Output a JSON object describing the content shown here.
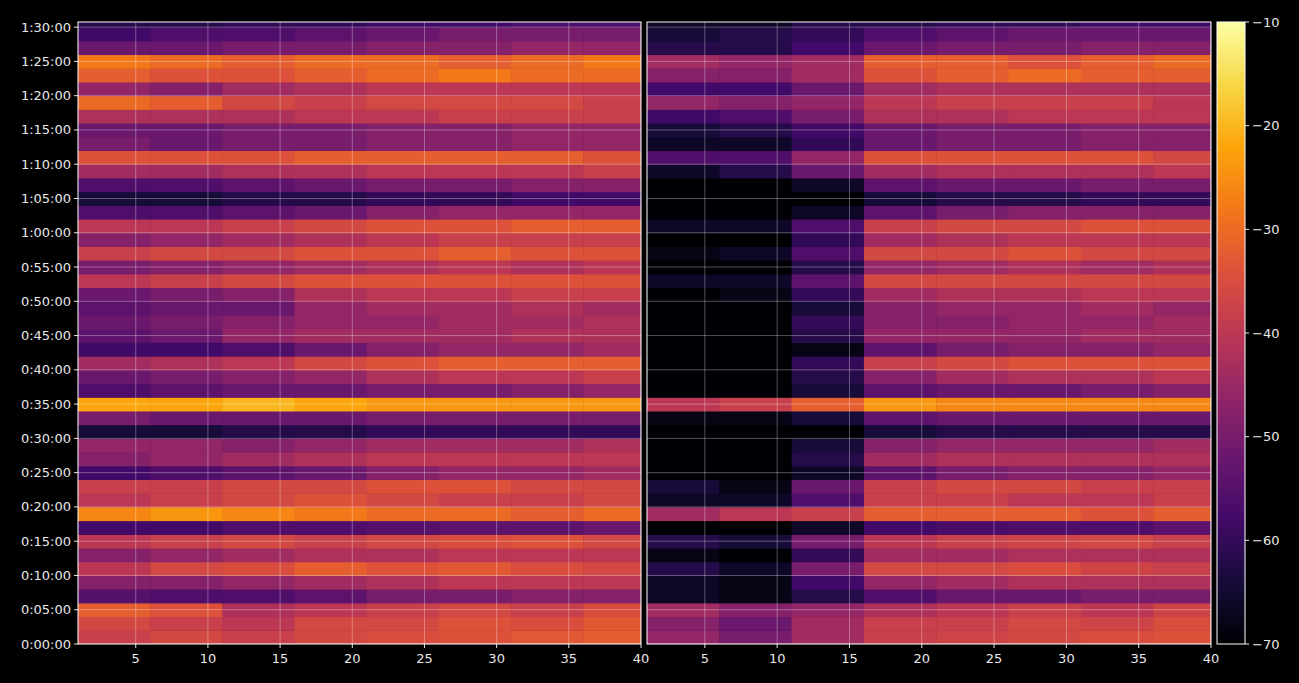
{
  "chart_data": [
    {
      "type": "heatmap",
      "x_bins": [
        1,
        6,
        11,
        16,
        21,
        26,
        31,
        36,
        40
      ],
      "y_bins": [
        0,
        120,
        240,
        360,
        480,
        600,
        720,
        840,
        960,
        1080,
        1200,
        1320,
        1440,
        1560,
        1680,
        1800,
        1920,
        2040,
        2160,
        2280,
        2400,
        2520,
        2640,
        2760,
        2880,
        3000,
        3120,
        3240,
        3360,
        3480,
        3600,
        3720,
        3840,
        3960,
        4080,
        4200,
        4320,
        4440,
        4560,
        4680,
        4800,
        4920,
        5040,
        5160,
        5280,
        5400,
        5520
      ],
      "z": [
        [
          -38,
          -36,
          -38,
          -36,
          -35,
          -34,
          -33,
          -32
        ],
        [
          -36,
          -38,
          -40,
          -36,
          -36,
          -34,
          -35,
          -33
        ],
        [
          -32,
          -34,
          -42,
          -40,
          -38,
          -36,
          -38,
          -35
        ],
        [
          -55,
          -56,
          -56,
          -54,
          -50,
          -50,
          -48,
          -48
        ],
        [
          -48,
          -48,
          -46,
          -44,
          -42,
          -40,
          -40,
          -40
        ],
        [
          -40,
          -36,
          -35,
          -32,
          -34,
          -33,
          -35,
          -36
        ],
        [
          -48,
          -46,
          -44,
          -42,
          -42,
          -40,
          -40,
          -40
        ],
        [
          -40,
          -38,
          -36,
          -38,
          -36,
          -35,
          -34,
          -36
        ],
        [
          -58,
          -58,
          -56,
          -56,
          -55,
          -54,
          -54,
          -52
        ],
        [
          -26,
          -24,
          -26,
          -28,
          -30,
          -30,
          -32,
          -30
        ],
        [
          -40,
          -38,
          -36,
          -34,
          -36,
          -38,
          -38,
          -36
        ],
        [
          -38,
          -38,
          -36,
          -36,
          -34,
          -34,
          -36,
          -36
        ],
        [
          -58,
          -56,
          -54,
          -52,
          -48,
          -46,
          -46,
          -44
        ],
        [
          -48,
          -46,
          -44,
          -42,
          -40,
          -40,
          -40,
          -40
        ],
        [
          -46,
          -46,
          -48,
          -46,
          -44,
          -44,
          -44,
          -42
        ],
        [
          -64,
          -64,
          -62,
          -62,
          -60,
          -60,
          -60,
          -60
        ],
        [
          -50,
          -52,
          -52,
          -52,
          -50,
          -50,
          -50,
          -50
        ],
        [
          -22,
          -22,
          -20,
          -22,
          -24,
          -24,
          -24,
          -24
        ],
        [
          -56,
          -54,
          -52,
          -52,
          -50,
          -50,
          -48,
          -46
        ],
        [
          -52,
          -50,
          -48,
          -46,
          -42,
          -40,
          -40,
          -38
        ],
        [
          -44,
          -42,
          -40,
          -36,
          -34,
          -32,
          -32,
          -32
        ],
        [
          -58,
          -58,
          -56,
          -52,
          -48,
          -46,
          -46,
          -44
        ],
        [
          -54,
          -52,
          -46,
          -44,
          -44,
          -44,
          -42,
          -42
        ],
        [
          -52,
          -50,
          -48,
          -46,
          -46,
          -44,
          -44,
          -42
        ],
        [
          -54,
          -52,
          -52,
          -46,
          -44,
          -44,
          -42,
          -44
        ],
        [
          -52,
          -50,
          -48,
          -42,
          -40,
          -40,
          -38,
          -38
        ],
        [
          -40,
          -38,
          -36,
          -34,
          -34,
          -34,
          -34,
          -34
        ],
        [
          -50,
          -48,
          -46,
          -44,
          -42,
          -40,
          -42,
          -40
        ],
        [
          -38,
          -36,
          -36,
          -34,
          -34,
          -32,
          -34,
          -34
        ],
        [
          -48,
          -46,
          -44,
          -42,
          -40,
          -38,
          -38,
          -38
        ],
        [
          -40,
          -40,
          -38,
          -36,
          -34,
          -34,
          -32,
          -32
        ],
        [
          -56,
          -56,
          -54,
          -52,
          -48,
          -46,
          -46,
          -46
        ],
        [
          -64,
          -64,
          -62,
          -62,
          -60,
          -60,
          -58,
          -58
        ],
        [
          -56,
          -56,
          -54,
          -52,
          -50,
          -50,
          -48,
          -48
        ],
        [
          -44,
          -44,
          -42,
          -42,
          -40,
          -40,
          -40,
          -38
        ],
        [
          -34,
          -34,
          -34,
          -32,
          -32,
          -32,
          -32,
          -34
        ],
        [
          -50,
          -52,
          -50,
          -50,
          -48,
          -48,
          -46,
          -46
        ],
        [
          -52,
          -52,
          -50,
          -50,
          -48,
          -48,
          -46,
          -46
        ],
        [
          -42,
          -42,
          -42,
          -40,
          -40,
          -38,
          -38,
          -38
        ],
        [
          -30,
          -32,
          -36,
          -38,
          -36,
          -36,
          -36,
          -38
        ],
        [
          -46,
          -48,
          -44,
          -42,
          -40,
          -40,
          -40,
          -40
        ],
        [
          -32,
          -34,
          -34,
          -32,
          -30,
          -28,
          -30,
          -30
        ],
        [
          -28,
          -30,
          -32,
          -30,
          -30,
          -32,
          -30,
          -28
        ],
        [
          -52,
          -52,
          -50,
          -50,
          -48,
          -48,
          -46,
          -46
        ],
        [
          -58,
          -56,
          -56,
          -54,
          -52,
          -50,
          -50,
          -50
        ],
        [
          -62,
          -62,
          -60,
          -60,
          -58,
          -58,
          -56,
          -56
        ]
      ],
      "xlim": [
        1,
        40
      ],
      "ylim": [
        0,
        5445
      ],
      "xticks": [
        5,
        10,
        15,
        20,
        25,
        30,
        35,
        40
      ],
      "yticks": [
        {
          "value": 0,
          "label": "0:00:00"
        },
        {
          "value": 300,
          "label": "0:05:00"
        },
        {
          "value": 600,
          "label": "0:10:00"
        },
        {
          "value": 900,
          "label": "0:15:00"
        },
        {
          "value": 1200,
          "label": "0:20:00"
        },
        {
          "value": 1500,
          "label": "0:25:00"
        },
        {
          "value": 1800,
          "label": "0:30:00"
        },
        {
          "value": 2100,
          "label": "0:35:00"
        },
        {
          "value": 2400,
          "label": "0:40:00"
        },
        {
          "value": 2700,
          "label": "0:45:00"
        },
        {
          "value": 3000,
          "label": "0:50:00"
        },
        {
          "value": 3300,
          "label": "0:55:00"
        },
        {
          "value": 3600,
          "label": "1:00:00"
        },
        {
          "value": 3900,
          "label": "1:05:00"
        },
        {
          "value": 4200,
          "label": "1:10:00"
        },
        {
          "value": 4500,
          "label": "1:15:00"
        },
        {
          "value": 4800,
          "label": "1:20:00"
        },
        {
          "value": 5100,
          "label": "1:25:00"
        },
        {
          "value": 5400,
          "label": "1:30:00"
        }
      ],
      "grid": true
    },
    {
      "type": "heatmap",
      "x_bins": [
        1,
        6,
        11,
        16,
        21,
        26,
        31,
        36,
        40
      ],
      "y_bins": [
        0,
        120,
        240,
        360,
        480,
        600,
        720,
        840,
        960,
        1080,
        1200,
        1320,
        1440,
        1560,
        1680,
        1800,
        1920,
        2040,
        2160,
        2280,
        2400,
        2520,
        2640,
        2760,
        2880,
        3000,
        3120,
        3240,
        3360,
        3480,
        3600,
        3720,
        3840,
        3960,
        4080,
        4200,
        4320,
        4440,
        4560,
        4680,
        4800,
        4920,
        5040,
        5160,
        5280,
        5400,
        5520
      ],
      "z": [
        [
          -46,
          -50,
          -44,
          -38,
          -37,
          -36,
          -35,
          -34
        ],
        [
          -48,
          -52,
          -44,
          -38,
          -38,
          -36,
          -37,
          -35
        ],
        [
          -44,
          -48,
          -46,
          -42,
          -40,
          -38,
          -40,
          -37
        ],
        [
          -66,
          -68,
          -62,
          -56,
          -52,
          -52,
          -50,
          -50
        ],
        [
          -66,
          -68,
          -58,
          -46,
          -44,
          -42,
          -42,
          -42
        ],
        [
          -62,
          -66,
          -50,
          -36,
          -36,
          -35,
          -37,
          -38
        ],
        [
          -68,
          -70,
          -60,
          -44,
          -44,
          -42,
          -42,
          -42
        ],
        [
          -62,
          -64,
          -50,
          -40,
          -38,
          -37,
          -36,
          -38
        ],
        [
          -70,
          -70,
          -66,
          -58,
          -57,
          -56,
          -56,
          -54
        ],
        [
          -44,
          -40,
          -38,
          -32,
          -32,
          -32,
          -34,
          -32
        ],
        [
          -66,
          -66,
          -56,
          -38,
          -38,
          -40,
          -40,
          -38
        ],
        [
          -64,
          -68,
          -52,
          -38,
          -36,
          -36,
          -38,
          -38
        ],
        [
          -70,
          -70,
          -66,
          -54,
          -50,
          -48,
          -48,
          -46
        ],
        [
          -70,
          -70,
          -62,
          -44,
          -42,
          -42,
          -42,
          -42
        ],
        [
          -70,
          -70,
          -64,
          -48,
          -46,
          -46,
          -46,
          -44
        ],
        [
          -70,
          -70,
          -70,
          -64,
          -62,
          -62,
          -62,
          -62
        ],
        [
          -68,
          -68,
          -64,
          -54,
          -52,
          -52,
          -52,
          -52
        ],
        [
          -40,
          -38,
          -32,
          -24,
          -26,
          -26,
          -26,
          -26
        ],
        [
          -70,
          -70,
          -64,
          -54,
          -52,
          -52,
          -50,
          -48
        ],
        [
          -70,
          -70,
          -62,
          -48,
          -44,
          -42,
          -42,
          -40
        ],
        [
          -70,
          -70,
          -60,
          -38,
          -36,
          -34,
          -34,
          -34
        ],
        [
          -70,
          -70,
          -68,
          -54,
          -50,
          -48,
          -48,
          -46
        ],
        [
          -70,
          -70,
          -62,
          -46,
          -46,
          -46,
          -44,
          -44
        ],
        [
          -70,
          -70,
          -60,
          -48,
          -48,
          -46,
          -46,
          -44
        ],
        [
          -70,
          -70,
          -64,
          -48,
          -46,
          -46,
          -44,
          -46
        ],
        [
          -70,
          -68,
          -60,
          -44,
          -42,
          -42,
          -40,
          -40
        ],
        [
          -66,
          -66,
          -54,
          -36,
          -36,
          -36,
          -36,
          -36
        ],
        [
          -70,
          -70,
          -62,
          -46,
          -44,
          -42,
          -44,
          -42
        ],
        [
          -68,
          -66,
          -56,
          -36,
          -36,
          -34,
          -36,
          -36
        ],
        [
          -70,
          -70,
          -60,
          -44,
          -42,
          -40,
          -40,
          -40
        ],
        [
          -66,
          -66,
          -56,
          -38,
          -36,
          -36,
          -34,
          -34
        ],
        [
          -70,
          -70,
          -66,
          -54,
          -50,
          -48,
          -48,
          -48
        ],
        [
          -70,
          -70,
          -70,
          -64,
          -62,
          -62,
          -60,
          -60
        ],
        [
          -70,
          -70,
          -66,
          -54,
          -52,
          -52,
          -50,
          -50
        ],
        [
          -66,
          -62,
          -52,
          -44,
          -42,
          -42,
          -42,
          -40
        ],
        [
          -56,
          -56,
          -46,
          -34,
          -34,
          -34,
          -34,
          -36
        ],
        [
          -66,
          -66,
          -60,
          -52,
          -50,
          -50,
          -48,
          -48
        ],
        [
          -64,
          -62,
          -58,
          -52,
          -50,
          -50,
          -48,
          -48
        ],
        [
          -58,
          -56,
          -50,
          -42,
          -42,
          -40,
          -40,
          -40
        ],
        [
          -46,
          -48,
          -46,
          -40,
          -38,
          -38,
          -38,
          -40
        ],
        [
          -58,
          -58,
          -52,
          -44,
          -42,
          -42,
          -42,
          -42
        ],
        [
          -48,
          -48,
          -44,
          -34,
          -32,
          -30,
          -32,
          -32
        ],
        [
          -44,
          -46,
          -44,
          -32,
          -32,
          -34,
          -32,
          -30
        ],
        [
          -62,
          -62,
          -58,
          -52,
          -50,
          -50,
          -48,
          -48
        ],
        [
          -64,
          -62,
          -60,
          -56,
          -54,
          -52,
          -52,
          -52
        ],
        [
          -66,
          -66,
          -62,
          -62,
          -60,
          -60,
          -58,
          -58
        ]
      ],
      "xlim": [
        1,
        40
      ],
      "ylim": [
        0,
        5445
      ],
      "xticks": [
        5,
        10,
        15,
        20,
        25,
        30,
        35,
        40
      ],
      "yticks": [
        0,
        300,
        600,
        900,
        1200,
        1500,
        1800,
        2100,
        2400,
        2700,
        3000,
        3300,
        3600,
        3900,
        4200,
        4500,
        4800,
        5100,
        5400
      ],
      "grid": true,
      "tick_labels": "x",
      "colorbar": {
        "range": [
          -70,
          -10
        ],
        "ticks": [
          {
            "value": -70,
            "label": "−70"
          },
          {
            "value": -60,
            "label": "−60"
          },
          {
            "value": -50,
            "label": "−50"
          },
          {
            "value": -40,
            "label": "−40"
          },
          {
            "value": -30,
            "label": "−30"
          },
          {
            "value": -20,
            "label": "−20"
          },
          {
            "value": -10,
            "label": "−10"
          }
        ]
      }
    }
  ]
}
